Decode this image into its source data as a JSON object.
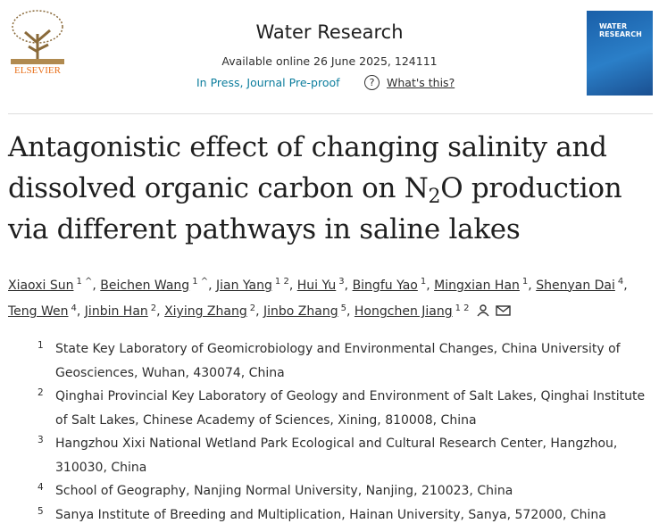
{
  "header": {
    "publisher": "ELSEVIER",
    "journal": "Water Research",
    "available_online": "Available online 26 June 2025, 124111",
    "status": "In Press, Journal Pre-proof",
    "help_icon": "?",
    "whats_this": "What's this?",
    "cover_title": "WATER RESEARCH"
  },
  "title": [
    "Antagonistic effect of changing salinity and dissolved organic carbon on N",
    "2",
    "O production via different pathways in saline lakes"
  ],
  "author_separator": ",",
  "authors": [
    {
      "name": "Xiaoxi Sun",
      "sup": "1 ^"
    },
    {
      "name": "Beichen Wang",
      "sup": "1 ^"
    },
    {
      "name": "Jian Yang",
      "sup": "1 2"
    },
    {
      "name": "Hui Yu",
      "sup": "3"
    },
    {
      "name": "Bingfu Yao",
      "sup": "1"
    },
    {
      "name": "Mingxian Han",
      "sup": "1"
    },
    {
      "name": "Shenyan Dai",
      "sup": "4"
    },
    {
      "name": "Teng Wen",
      "sup": "4"
    },
    {
      "name": "Jinbin Han",
      "sup": "2"
    },
    {
      "name": "Xiying Zhang",
      "sup": "2"
    },
    {
      "name": "Jinbo Zhang",
      "sup": "5"
    },
    {
      "name": "Hongchen Jiang",
      "sup": "1 2"
    }
  ],
  "affiliations": [
    {
      "number": "1",
      "text": "State Key Laboratory of Geomicrobiology and Environmental Changes, China University of Geosciences, Wuhan, 430074, China"
    },
    {
      "number": "2",
      "text": "Qinghai Provincial Key Laboratory of Geology and Environment of Salt Lakes, Qinghai Institute of Salt Lakes, Chinese Academy of Sciences, Xining, 810008, China"
    },
    {
      "number": "3",
      "text": "Hangzhou Xixi National Wetland Park Ecological and Cultural Research Center, Hangzhou, 310030, China"
    },
    {
      "number": "4",
      "text": "School of Geography, Nanjing Normal University, Nanjing, 210023, China"
    },
    {
      "number": "5",
      "text": "Sanya Institute of Breeding and Multiplication, Hainan University, Sanya, 572000, China"
    }
  ]
}
